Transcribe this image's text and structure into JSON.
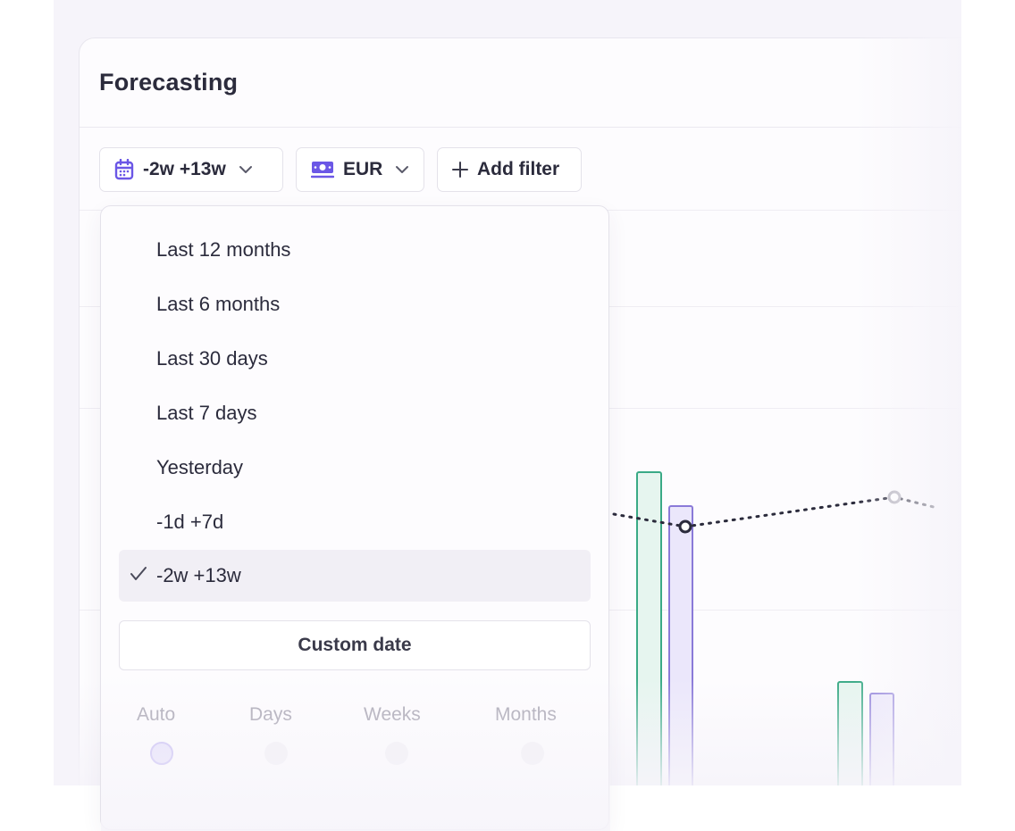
{
  "card": {
    "title": "Forecasting"
  },
  "toolbar": {
    "date_range": "-2w +13w",
    "currency": "EUR",
    "add_filter": "Add filter"
  },
  "dropdown": {
    "options": [
      "Last 12 months",
      "Last 6 months",
      "Last 30 days",
      "Last 7 days",
      "Yesterday",
      "-1d +7d",
      "-2w +13w"
    ],
    "selected": "-2w +13w",
    "custom_date": "Custom date",
    "granularity": [
      "Auto",
      "Days",
      "Weeks",
      "Months"
    ],
    "granularity_selected": "Auto"
  },
  "colors": {
    "accent_purple": "#6b57e6",
    "bar_green": "#3aaa86",
    "bar_purple": "#8a7ad8"
  }
}
